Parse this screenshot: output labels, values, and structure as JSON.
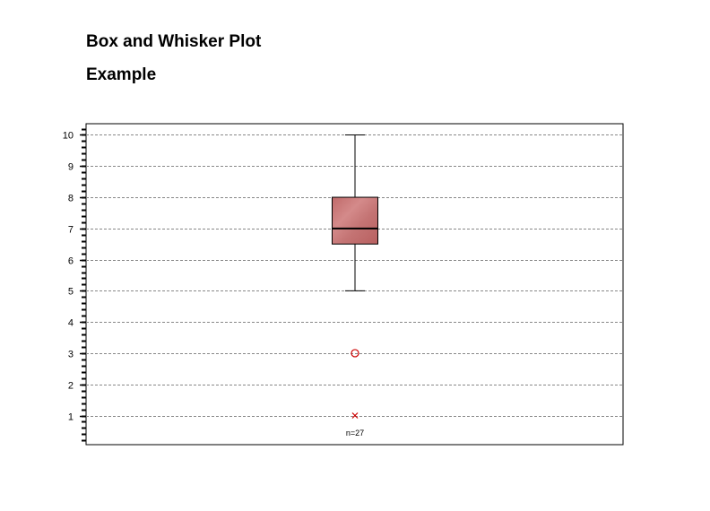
{
  "titles": {
    "line1": "Box and Whisker Plot",
    "line2": "Example"
  },
  "chart_data": {
    "type": "box",
    "title": "Box and Whisker Plot",
    "subtitle": "Example",
    "xlabel": "",
    "ylabel": "",
    "ylim": [
      0,
      10.4
    ],
    "yticks": [
      1,
      2,
      3,
      4,
      5,
      6,
      7,
      8,
      9,
      10
    ],
    "grid": true,
    "box": {
      "whisker_low": 5,
      "q1": 6.5,
      "median": 7,
      "q3": 8,
      "whisker_high": 10,
      "outliers": [
        3
      ],
      "extremes": [
        1
      ],
      "n_label": "n=27"
    },
    "colors": {
      "box_fill": "#c87070",
      "outlier": "#cc0000",
      "grid": "#888888"
    }
  }
}
